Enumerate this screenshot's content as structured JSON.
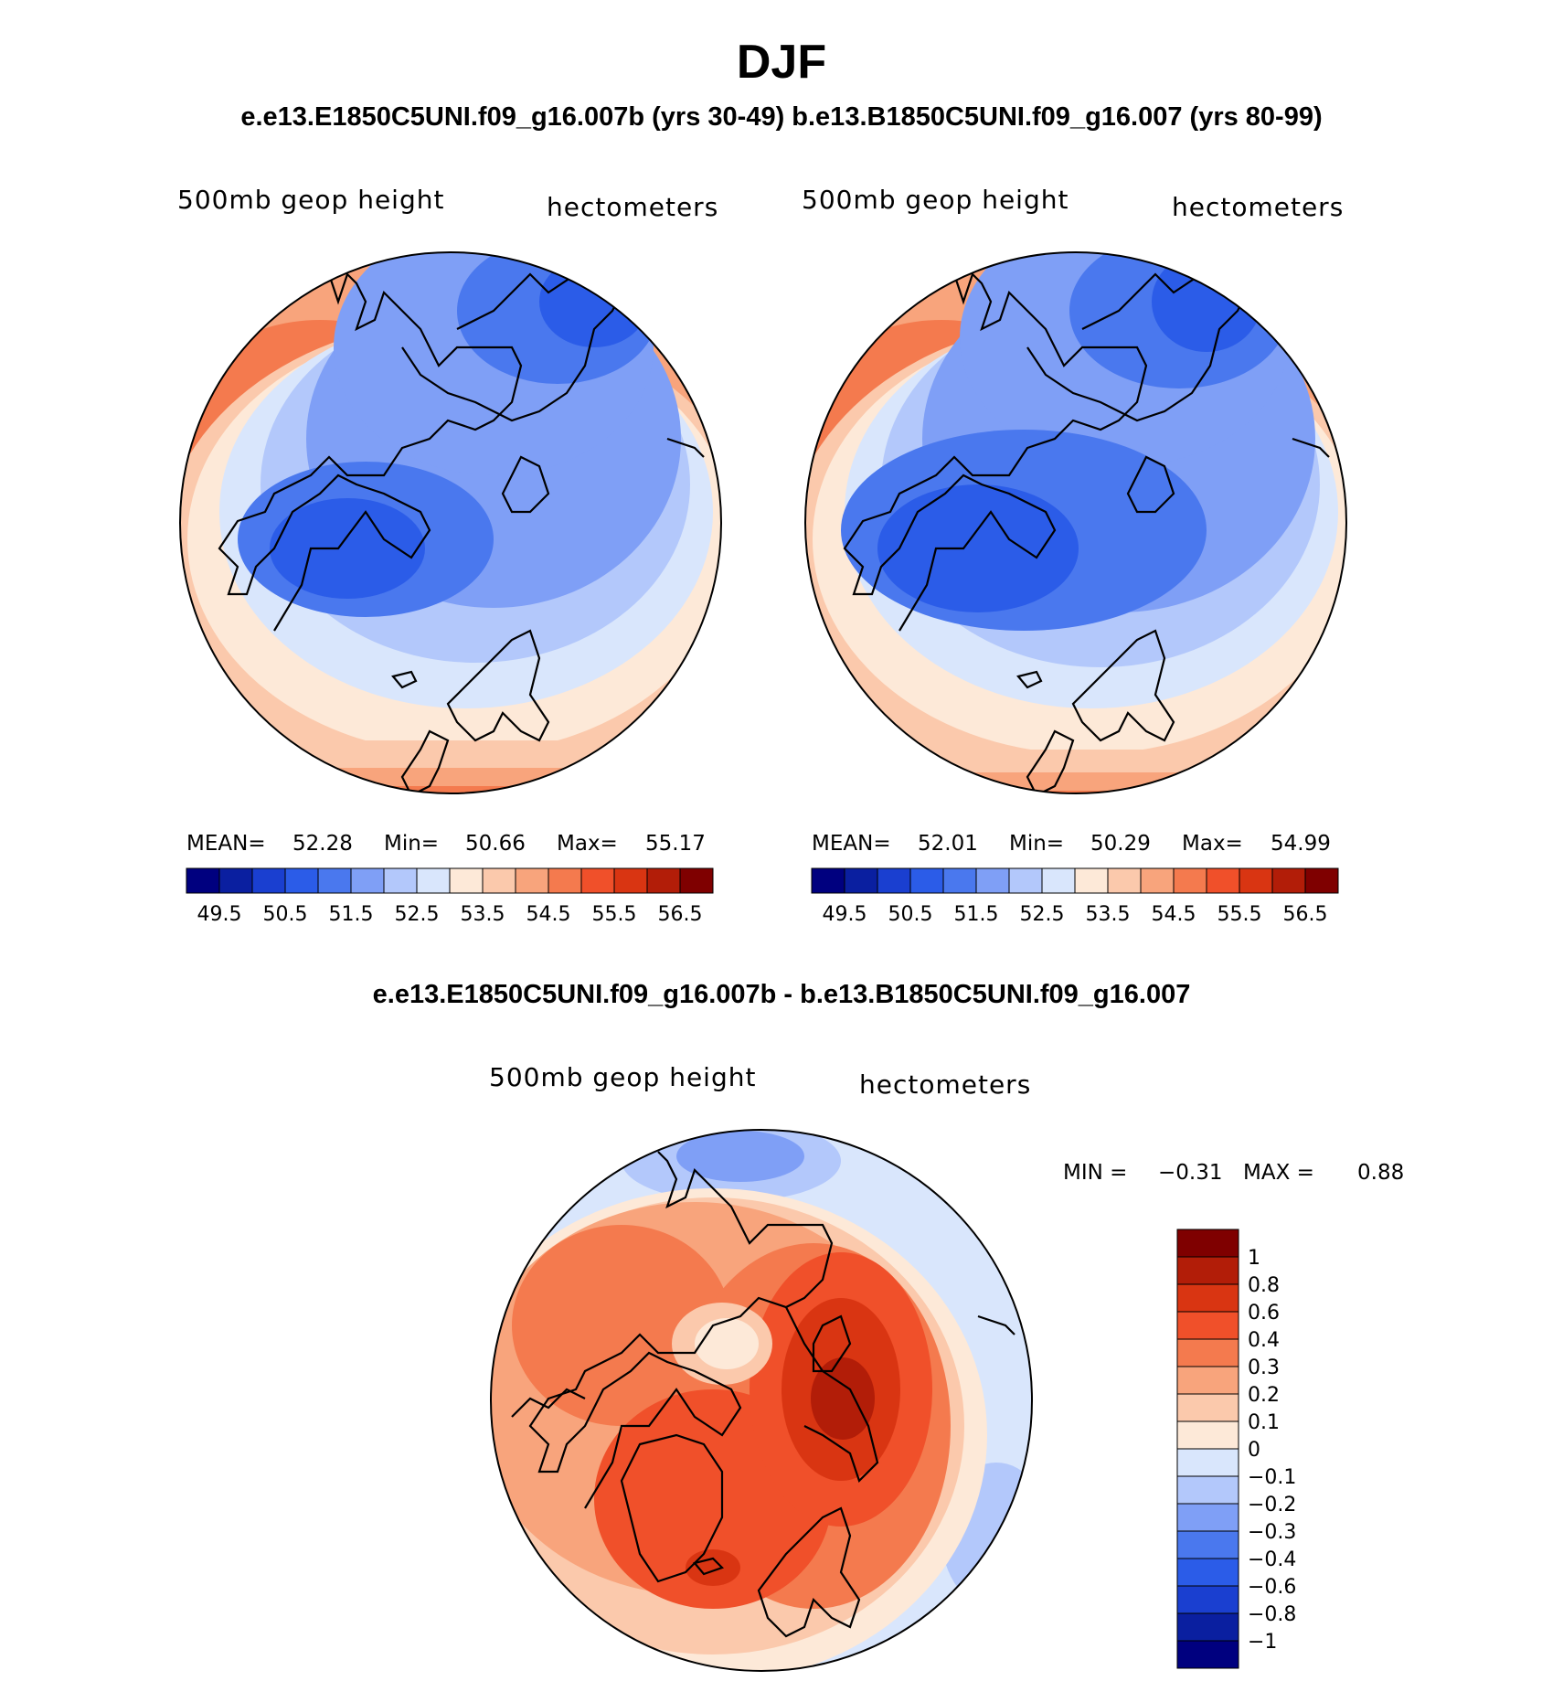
{
  "title": "DJF",
  "subtitle": "e.e13.E1850C5UNI.f09_g16.007b (yrs 30-49)  b.e13.B1850C5UNI.f09_g16.007 (yrs 80-99)",
  "diff_title": "e.e13.E1850C5UNI.f09_g16.007b - b.e13.B1850C5UNI.f09_g16.007",
  "colors": {
    "abs_scale": [
      "#00007f",
      "#0a1fa0",
      "#1a3fd0",
      "#2b5ce8",
      "#4a78ee",
      "#7f9ff6",
      "#b3c8fb",
      "#d9e6fc",
      "#fde9d8",
      "#fbc9ac",
      "#f8a47c",
      "#f47a4e",
      "#f0502a",
      "#d93512",
      "#b21d08",
      "#7f0000"
    ],
    "diff_scale": [
      "#00007f",
      "#0a1fa0",
      "#1a3fd0",
      "#2b5ce8",
      "#4a78ee",
      "#7f9ff6",
      "#b3c8fb",
      "#d9e6fc",
      "#fde9d8",
      "#fbc9ac",
      "#f8a47c",
      "#f47a4e",
      "#f0502a",
      "#d93512",
      "#b21d08",
      "#7f0000"
    ]
  },
  "chart_data": [
    {
      "type": "heatmap",
      "projection": "polar-stereographic",
      "title": "500mb geop height",
      "units": "hectometers",
      "stats": {
        "mean_label": "MEAN=",
        "mean": "52.28",
        "min_label": "Min=",
        "min": "50.66",
        "max_label": "Max=",
        "max": "55.17"
      },
      "levels": [
        49.5,
        50,
        50.5,
        51,
        51.5,
        52,
        52.5,
        53,
        53.5,
        54,
        54.5,
        55,
        55.5,
        56,
        56.5
      ],
      "tick_labels": [
        "49.5",
        "50.5",
        "51.5",
        "52.5",
        "53.5",
        "54.5",
        "55.5",
        "56.5"
      ]
    },
    {
      "type": "heatmap",
      "projection": "polar-stereographic",
      "title": "500mb geop height",
      "units": "hectometers",
      "stats": {
        "mean_label": "MEAN=",
        "mean": "52.01",
        "min_label": "Min=",
        "min": "50.29",
        "max_label": "Max=",
        "max": "54.99"
      },
      "levels": [
        49.5,
        50,
        50.5,
        51,
        51.5,
        52,
        52.5,
        53,
        53.5,
        54,
        54.5,
        55,
        55.5,
        56,
        56.5
      ],
      "tick_labels": [
        "49.5",
        "50.5",
        "51.5",
        "52.5",
        "53.5",
        "54.5",
        "55.5",
        "56.5"
      ]
    },
    {
      "type": "heatmap",
      "projection": "polar-stereographic",
      "title": "500mb geop height",
      "units": "hectometers",
      "stats": {
        "min_label": "MIN =",
        "min": "−0.31",
        "max_label": "MAX =",
        "max": "0.88"
      },
      "levels": [
        -1,
        -0.8,
        -0.6,
        -0.4,
        -0.3,
        -0.2,
        -0.1,
        0,
        0.1,
        0.2,
        0.3,
        0.4,
        0.6,
        0.8,
        1
      ],
      "tick_labels": [
        "1",
        "0.8",
        "0.6",
        "0.4",
        "0.3",
        "0.2",
        "0.1",
        "0",
        "−0.1",
        "−0.2",
        "−0.3",
        "−0.4",
        "−0.6",
        "−0.8",
        "−1"
      ]
    }
  ]
}
